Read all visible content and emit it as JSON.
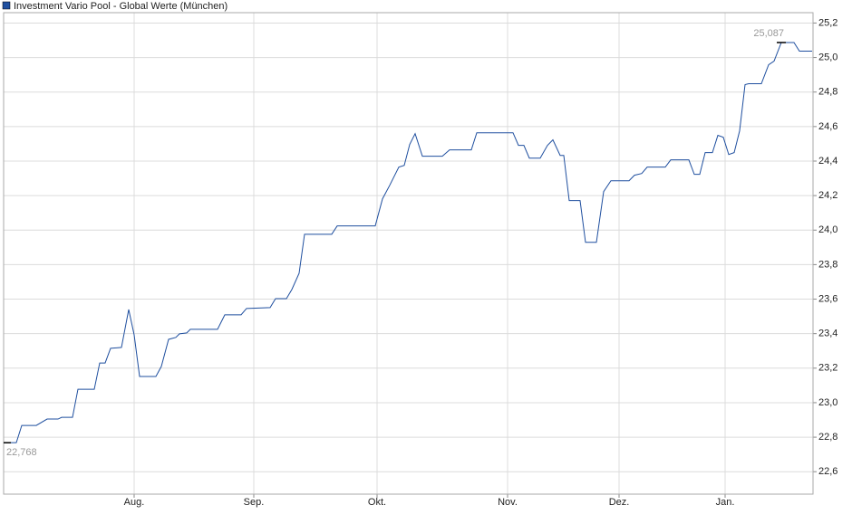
{
  "chart_data": {
    "type": "line",
    "x": [
      0,
      7,
      10,
      18,
      24,
      30,
      32,
      38,
      41,
      50,
      53,
      56,
      59,
      65,
      69,
      72,
      75,
      84,
      87,
      91,
      95,
      97,
      101,
      103,
      118,
      122,
      131,
      134,
      147,
      150,
      156,
      159,
      163,
      166,
      181,
      184,
      205,
      209,
      213,
      218,
      221,
      224,
      227,
      231,
      242,
      246,
      258,
      261,
      281,
      284,
      287,
      290,
      296,
      300,
      303,
      307,
      309,
      312,
      318,
      321,
      327,
      331,
      335,
      345,
      348,
      352,
      355,
      365,
      368,
      378,
      381,
      384,
      387,
      391,
      394,
      397,
      400,
      403,
      406,
      409,
      411,
      418,
      422,
      425,
      429,
      436,
      439,
      446
    ],
    "series": [
      {
        "name": "Investment Vario Pool - Global Werte (München)",
        "color": "#1f4f9f",
        "values": [
          22.768,
          22.768,
          22.868,
          22.868,
          22.905,
          22.905,
          22.915,
          22.915,
          23.078,
          23.078,
          23.23,
          23.23,
          23.315,
          23.32,
          23.54,
          23.393,
          23.152,
          23.152,
          23.21,
          23.367,
          23.378,
          23.399,
          23.404,
          23.425,
          23.425,
          23.509,
          23.509,
          23.546,
          23.551,
          23.603,
          23.603,
          23.656,
          23.75,
          23.976,
          23.976,
          24.024,
          24.024,
          24.181,
          24.26,
          24.365,
          24.375,
          24.496,
          24.559,
          24.428,
          24.428,
          24.465,
          24.465,
          24.564,
          24.564,
          24.491,
          24.491,
          24.417,
          24.417,
          24.491,
          24.523,
          24.433,
          24.433,
          24.171,
          24.171,
          23.929,
          23.929,
          24.223,
          24.286,
          24.286,
          24.318,
          24.328,
          24.365,
          24.365,
          24.407,
          24.407,
          24.323,
          24.323,
          24.449,
          24.449,
          24.549,
          24.538,
          24.438,
          24.449,
          24.575,
          24.843,
          24.848,
          24.848,
          24.958,
          24.979,
          25.087,
          25.087,
          25.037,
          25.037
        ]
      }
    ],
    "xlim": [
      0,
      446.5
    ],
    "xticks": [
      {
        "value": 72,
        "label": "Aug."
      },
      {
        "value": 138,
        "label": "Sep."
      },
      {
        "value": 206,
        "label": "Okt."
      },
      {
        "value": 278,
        "label": "Nov."
      },
      {
        "value": 339.5,
        "label": "Dez."
      },
      {
        "value": 398,
        "label": "Jan."
      }
    ],
    "ylim": [
      22.47,
      25.26
    ],
    "yticks": [
      {
        "value": 22.6,
        "label": "22,6"
      },
      {
        "value": 22.8,
        "label": "22,8"
      },
      {
        "value": 23.0,
        "label": "23,0"
      },
      {
        "value": 23.2,
        "label": "23,2"
      },
      {
        "value": 23.4,
        "label": "23,4"
      },
      {
        "value": 23.6,
        "label": "23,6"
      },
      {
        "value": 23.8,
        "label": "23,8"
      },
      {
        "value": 24.0,
        "label": "24,0"
      },
      {
        "value": 24.2,
        "label": "24,2"
      },
      {
        "value": 24.4,
        "label": "24,4"
      },
      {
        "value": 24.6,
        "label": "24,6"
      },
      {
        "value": 24.8,
        "label": "24,8"
      },
      {
        "value": 25.0,
        "label": "25,0"
      },
      {
        "value": 25.2,
        "label": "25,2"
      }
    ],
    "annotations": [
      {
        "label": "22,768",
        "x": 0,
        "value": 22.768
      },
      {
        "label": "25,087",
        "x": 429,
        "value": 25.087
      }
    ],
    "grid": true
  }
}
